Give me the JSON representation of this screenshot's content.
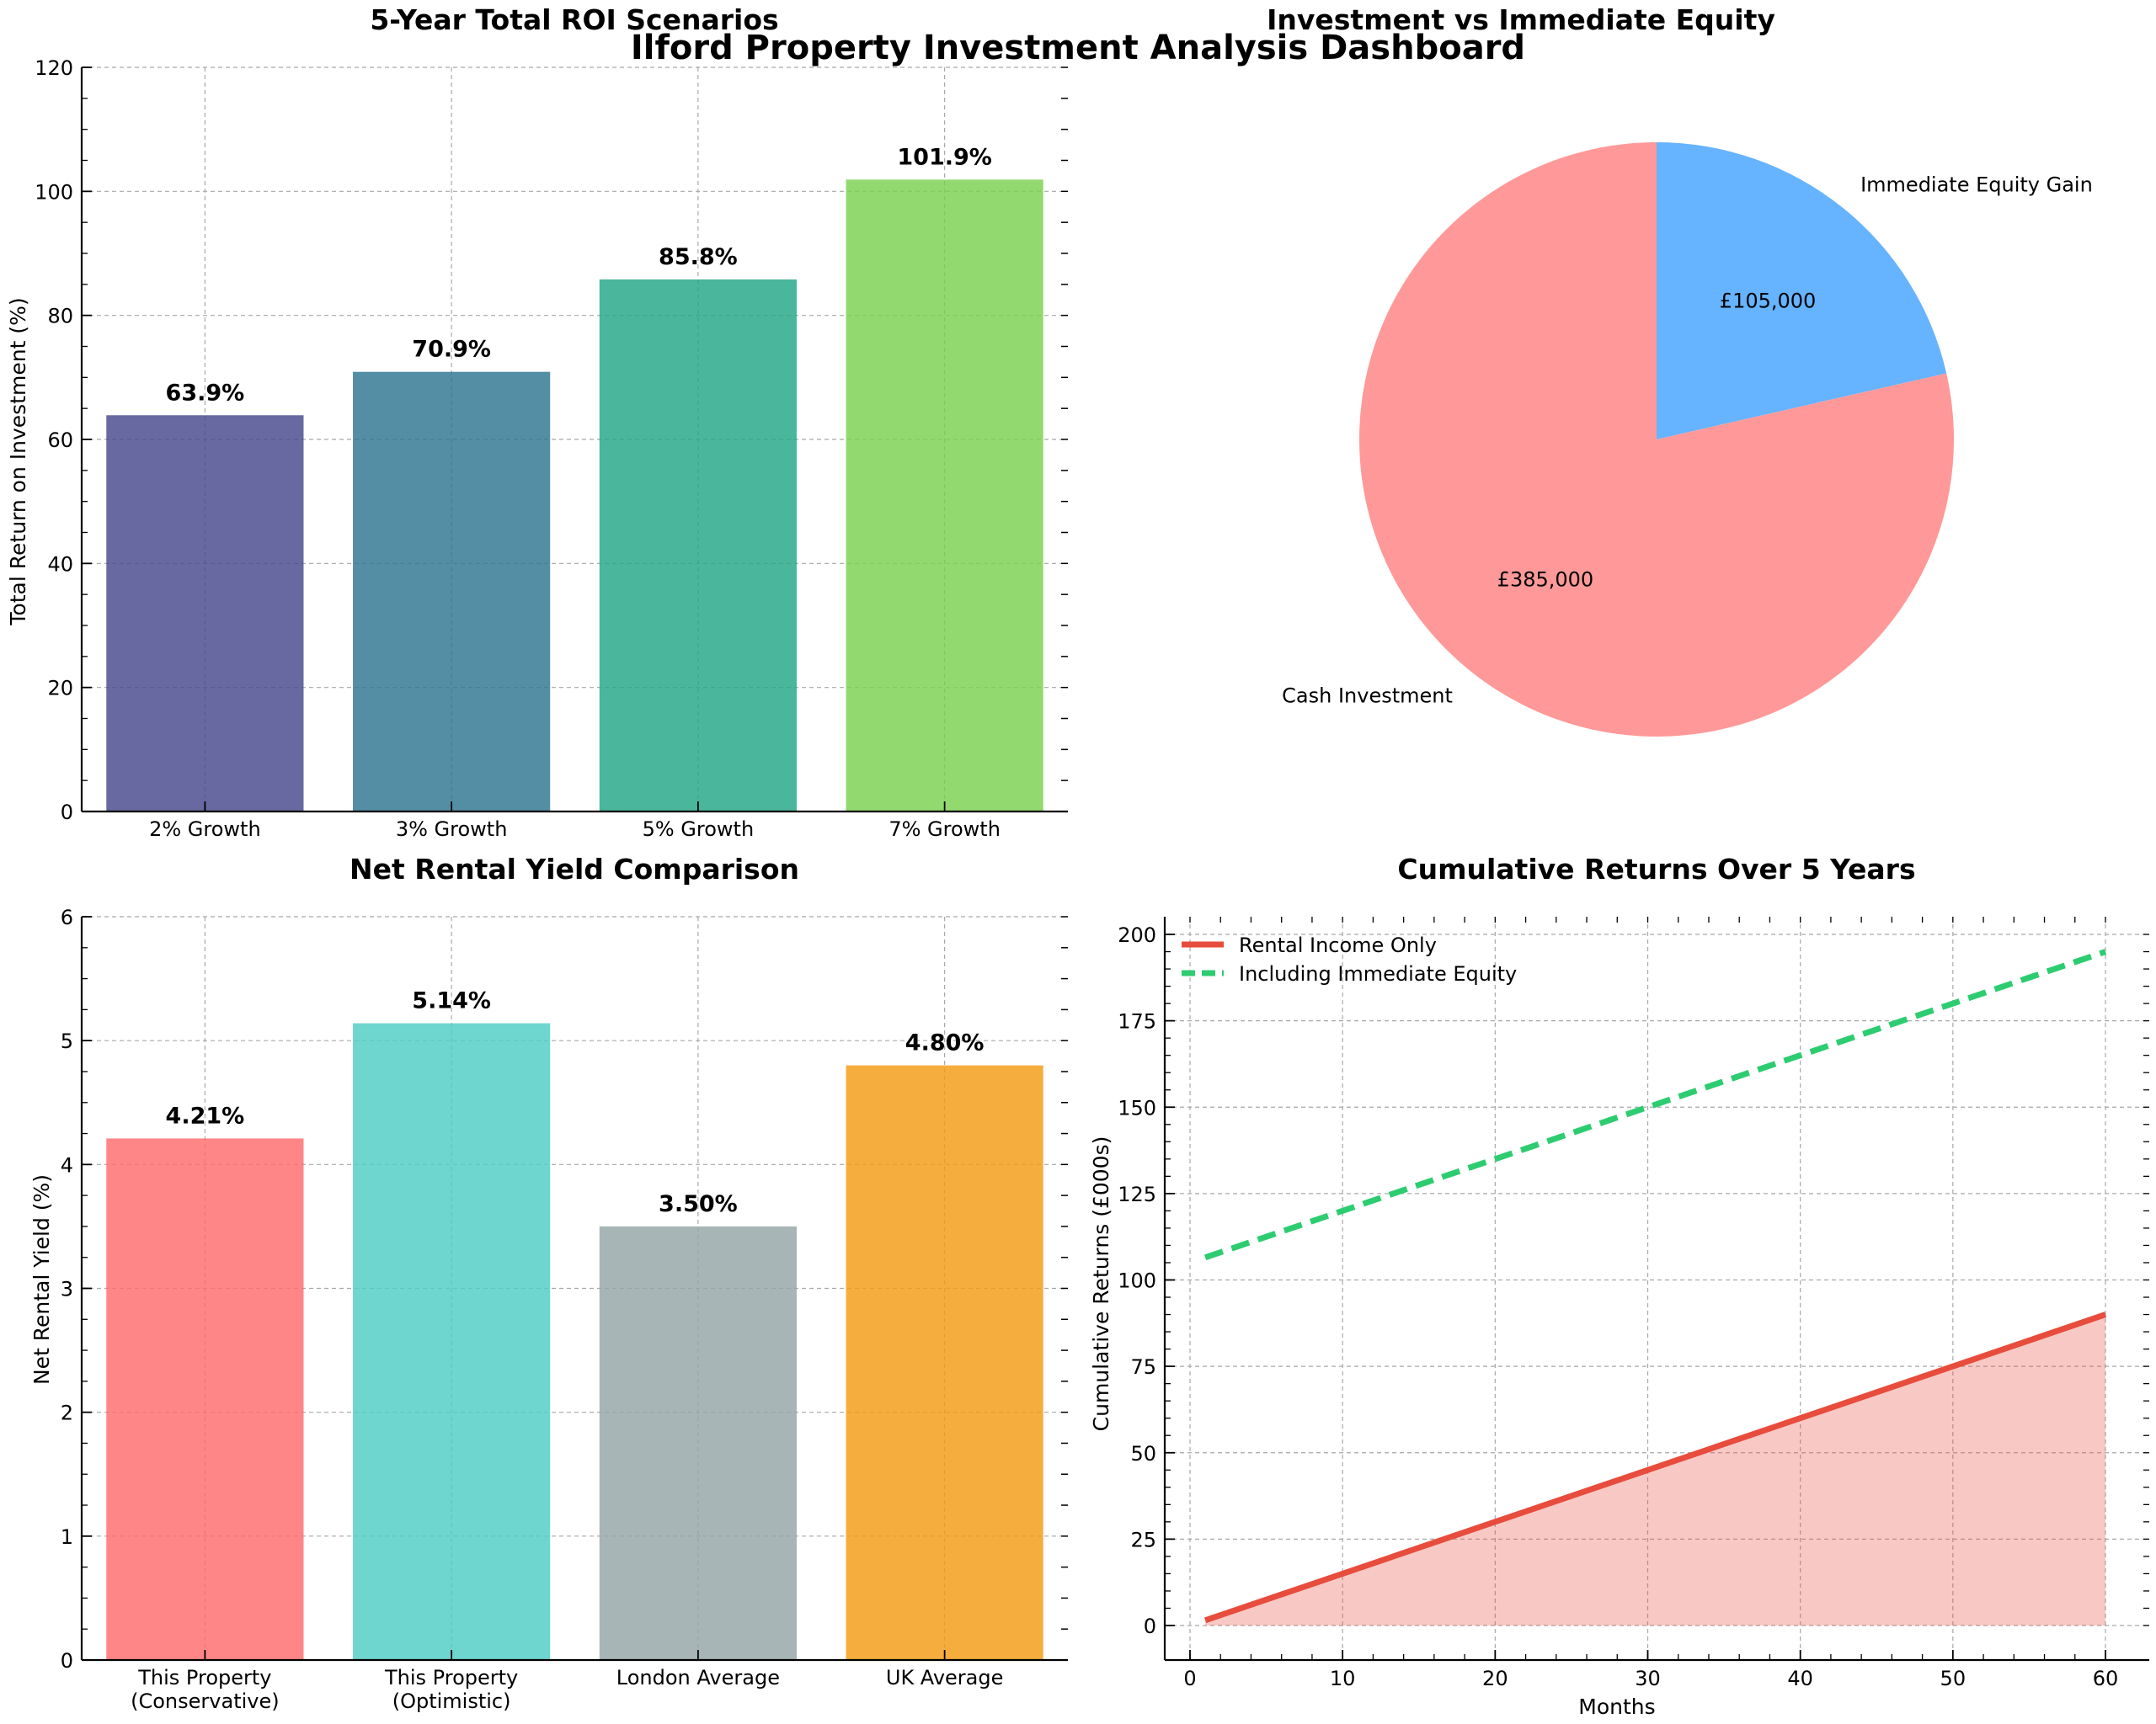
{
  "suptitle": "Ilford Property Investment Analysis Dashboard",
  "chart_data": [
    {
      "type": "bar",
      "title": "5-Year Total ROI Scenarios",
      "xlabel": "",
      "ylabel": "Total Return on Investment (%)",
      "categories": [
        "2% Growth",
        "3% Growth",
        "5% Growth",
        "7% Growth"
      ],
      "values": [
        63.9,
        70.9,
        85.8,
        101.9
      ],
      "value_labels": [
        "63.9%",
        "70.9%",
        "85.8%",
        "101.9%"
      ],
      "colors": [
        "#46488b",
        "#2e7590",
        "#22a685",
        "#7ad24f"
      ],
      "ylim": [
        0,
        120
      ],
      "yticks": [
        "0",
        "20",
        "40",
        "60",
        "80",
        "100",
        "120"
      ],
      "grid": true
    },
    {
      "type": "pie",
      "title": "Investment vs Immediate Equity",
      "labels": [
        "Cash Investment",
        "Immediate Equity Gain"
      ],
      "values": [
        385000,
        105000
      ],
      "value_labels": [
        "£385,000",
        "£105,000"
      ],
      "colors": [
        "#ff9999",
        "#66b3ff"
      ]
    },
    {
      "type": "bar",
      "title": "Net Rental Yield Comparison",
      "xlabel": "",
      "ylabel": "Net Rental Yield (%)",
      "categories": [
        [
          "This Property",
          "(Conservative)"
        ],
        [
          "This Property",
          "(Optimistic)"
        ],
        [
          "London Average"
        ],
        [
          "UK Average"
        ]
      ],
      "values": [
        4.21,
        5.14,
        3.5,
        4.8
      ],
      "value_labels": [
        "4.21%",
        "5.14%",
        "3.50%",
        "4.80%"
      ],
      "colors": [
        "#ff6b6b",
        "#4ecdc4",
        "#95a5a6",
        "#f39c12"
      ],
      "ylim": [
        0,
        6
      ],
      "yticks": [
        "0",
        "1",
        "2",
        "3",
        "4",
        "5",
        "6"
      ],
      "grid": true
    },
    {
      "type": "line",
      "title": "Cumulative Returns Over 5 Years",
      "xlabel": "Months",
      "ylabel": "Cumulative Returns (£000s)",
      "xlim": [
        1,
        60
      ],
      "ylim": [
        0,
        200
      ],
      "xticks": [
        "0",
        "10",
        "20",
        "30",
        "40",
        "50",
        "60"
      ],
      "yticks": [
        "0",
        "25",
        "50",
        "75",
        "100",
        "125",
        "150",
        "175",
        "200"
      ],
      "legend_position": "upper left",
      "grid": true,
      "series": [
        {
          "name": "Rental Income Only",
          "x": [
            1,
            60
          ],
          "y": [
            1.5,
            90
          ],
          "color": "#e74c3c",
          "dash": "solid",
          "fill": true
        },
        {
          "name": "Including Immediate Equity",
          "x": [
            1,
            60
          ],
          "y": [
            106.5,
            195
          ],
          "color": "#2ecc71",
          "dash": "dashed",
          "fill": false
        }
      ]
    }
  ]
}
